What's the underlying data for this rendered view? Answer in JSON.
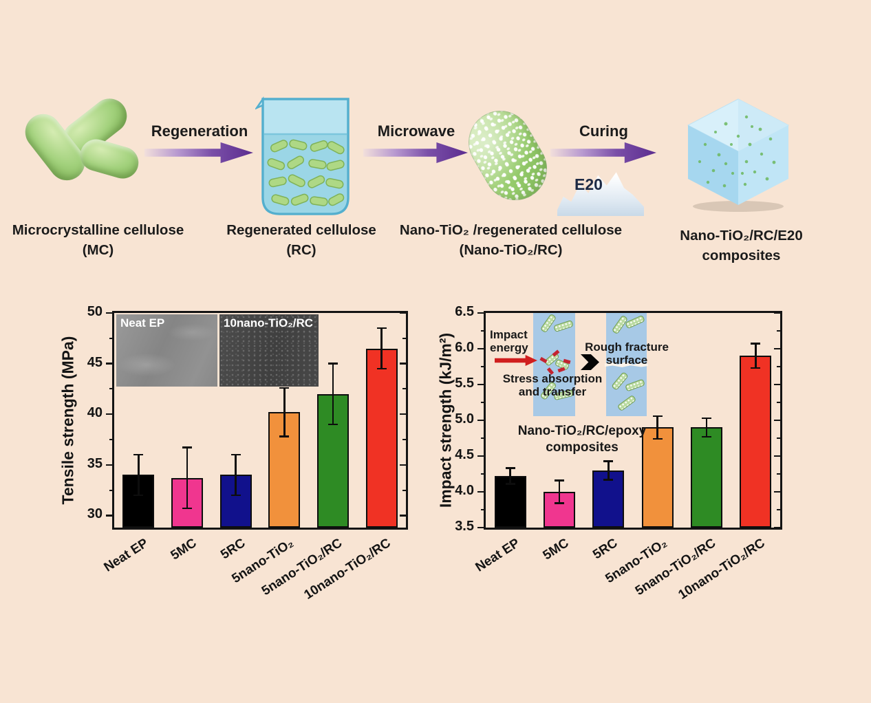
{
  "process": {
    "items": [
      {
        "name": "Microcrystalline cellulose",
        "abbr": "(MC)"
      },
      {
        "name": "Regenerated cellulose",
        "abbr": "(RC)"
      },
      {
        "name": "Nano-TiO₂ /regenerated cellulose",
        "abbr": "(Nano-TiO₂/RC)"
      },
      {
        "name": "Nano-TiO₂/RC/E20",
        "abbr": "composites"
      }
    ],
    "arrows": [
      {
        "label": "Regeneration"
      },
      {
        "label": "Microwave"
      },
      {
        "label": "Curing"
      }
    ],
    "e20_label": "E20"
  },
  "chart_data": [
    {
      "type": "bar",
      "ylabel": "Tensile strength (MPa)",
      "categories": [
        "Neat EP",
        "5MC",
        "5RC",
        "5nano-TiO₂",
        "5nano-TiO₂/RC",
        "10nano-TiO₂/RC"
      ],
      "values": [
        34.0,
        33.7,
        34.0,
        40.2,
        42.0,
        46.5
      ],
      "errors": [
        2.0,
        3.0,
        2.0,
        2.4,
        3.0,
        2.0
      ],
      "bar_colors": [
        "#000000",
        "#f0368f",
        "#11118c",
        "#f1913c",
        "#2e8b24",
        "#f03224"
      ],
      "ylim": [
        28.8,
        50
      ],
      "yticks": [
        "30",
        "35",
        "40",
        "45",
        "50"
      ],
      "ytick_values": [
        30,
        35,
        40,
        45,
        50
      ],
      "grid": false,
      "insets": [
        "Neat EP",
        "10nano-TiO₂/RC"
      ]
    },
    {
      "type": "bar",
      "ylabel": "Impact strength (kJ/m²)",
      "categories": [
        "Neat EP",
        "5MC",
        "5RC",
        "5nano-TiO₂",
        "5nano-TiO₂/RC",
        "10nano-TiO₂/RC"
      ],
      "values": [
        4.22,
        4.0,
        4.3,
        4.9,
        4.9,
        5.9
      ],
      "errors": [
        0.11,
        0.16,
        0.13,
        0.16,
        0.13,
        0.17
      ],
      "bar_colors": [
        "#000000",
        "#f0368f",
        "#11118c",
        "#f1913c",
        "#2e8b24",
        "#f03224"
      ],
      "ylim": [
        3.5,
        6.5
      ],
      "yticks": [
        "3.5",
        "4.0",
        "4.5",
        "5.0",
        "5.5",
        "6.0",
        "6.5"
      ],
      "ytick_values": [
        3.5,
        4.0,
        4.5,
        5.0,
        5.5,
        6.0,
        6.5
      ],
      "grid": false,
      "annotation": "Nano-TiO₂/RC/epoxy\ncomposites",
      "inset_labels": {
        "impact": "Impact\nenergy",
        "stress": "Stress absorption\nand transfer",
        "fracture": "Rough fracture\nsurface"
      }
    }
  ],
  "colors": {
    "background": "#f8e4d3",
    "arrow_purple": "#5c2d8f",
    "bar_outline": "#0d0d0d"
  }
}
